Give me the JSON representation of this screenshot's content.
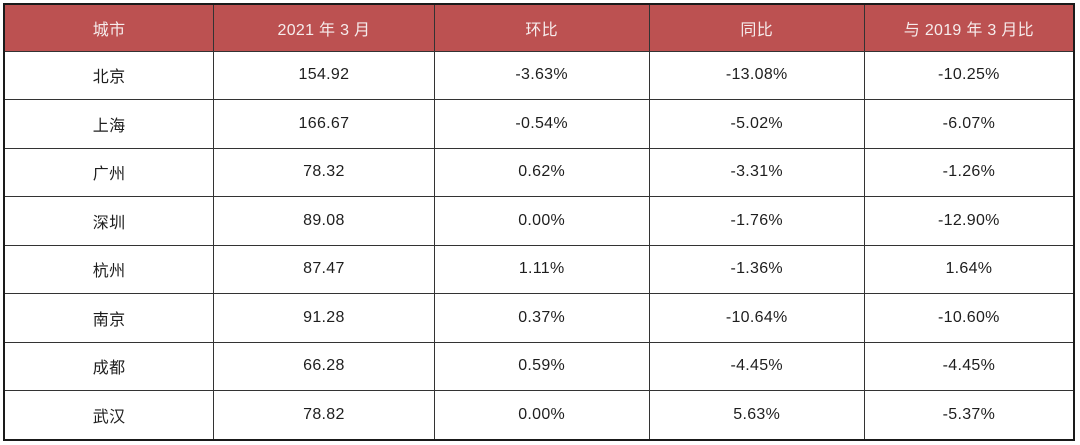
{
  "colors": {
    "header_background": "#bc5151",
    "header_text": "#f6ecec",
    "body_text": "#1e1e1e",
    "border": "#333333",
    "page_background": "#ffffff"
  },
  "chart_data": {
    "type": "table",
    "title": "",
    "columns": [
      "城市",
      "2021 年 3 月",
      "环比",
      "同比",
      "与 2019 年 3 月比"
    ],
    "rows": [
      [
        "北京",
        "154.92",
        "-3.63%",
        "-13.08%",
        "-10.25%"
      ],
      [
        "上海",
        "166.67",
        "-0.54%",
        "-5.02%",
        "-6.07%"
      ],
      [
        "广州",
        "78.32",
        "0.62%",
        "-3.31%",
        "-1.26%"
      ],
      [
        "深圳",
        "89.08",
        "0.00%",
        "-1.76%",
        "-12.90%"
      ],
      [
        "杭州",
        "87.47",
        "1.11%",
        "-1.36%",
        "1.64%"
      ],
      [
        "南京",
        "91.28",
        "0.37%",
        "-10.64%",
        "-10.60%"
      ],
      [
        "成都",
        "66.28",
        "0.59%",
        "-4.45%",
        "-4.45%"
      ],
      [
        "武汉",
        "78.82",
        "0.00%",
        "5.63%",
        "-5.37%"
      ]
    ]
  }
}
